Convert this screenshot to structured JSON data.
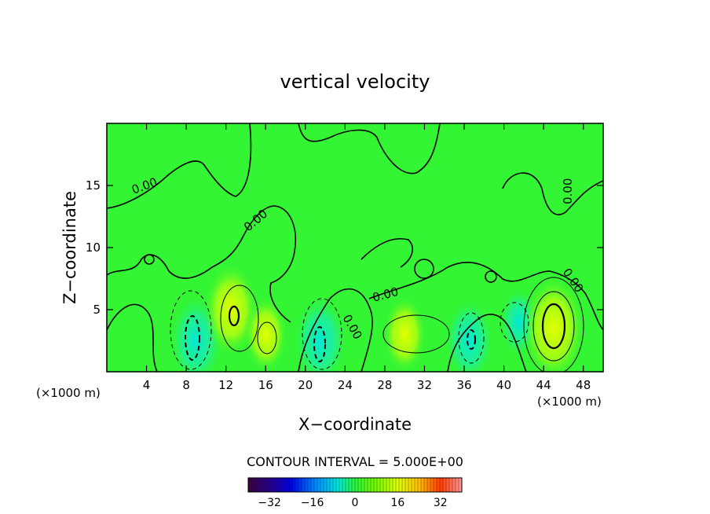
{
  "chart_data": {
    "type": "heatmap",
    "title": "vertical velocity",
    "xlabel": "X−coordinate",
    "ylabel": "Z−coordinate",
    "xlim": [
      0,
      50
    ],
    "ylim": [
      0,
      20
    ],
    "x_ticks": [
      4,
      8,
      12,
      16,
      20,
      24,
      28,
      32,
      36,
      40,
      44,
      48
    ],
    "y_ticks": [
      5,
      10,
      15
    ],
    "x_units": "(×1000 m)",
    "y_units": "(×1000 m)",
    "contour_interval_text": "CONTOUR INTERVAL = 5.000E+00",
    "contour_labels": [
      "0.00",
      "0.00",
      "0.00",
      "0.00",
      "0.00",
      "0.00"
    ],
    "colorbar": {
      "range": [
        -40,
        40
      ],
      "ticks": [
        -32,
        -16,
        0,
        16,
        32
      ],
      "tick_labels": [
        "−32",
        "−16",
        "0",
        "16",
        "32"
      ]
    },
    "features": [
      {
        "x": 9.0,
        "z": 2.5,
        "value": -12
      },
      {
        "x": 12.5,
        "z": 5.0,
        "value": 12
      },
      {
        "x": 16.0,
        "z": 3.0,
        "value": 7
      },
      {
        "x": 21.5,
        "z": 2.5,
        "value": -12
      },
      {
        "x": 30.0,
        "z": 3.0,
        "value": 7
      },
      {
        "x": 36.5,
        "z": 2.5,
        "value": -10
      },
      {
        "x": 41.5,
        "z": 4.0,
        "value": -5
      },
      {
        "x": 45.0,
        "z": 3.5,
        "value": 16
      }
    ],
    "colors": {
      "background_field": "#33f533",
      "negative_strong": "#00e0e0",
      "positive_strong": "#d8ff00"
    }
  }
}
